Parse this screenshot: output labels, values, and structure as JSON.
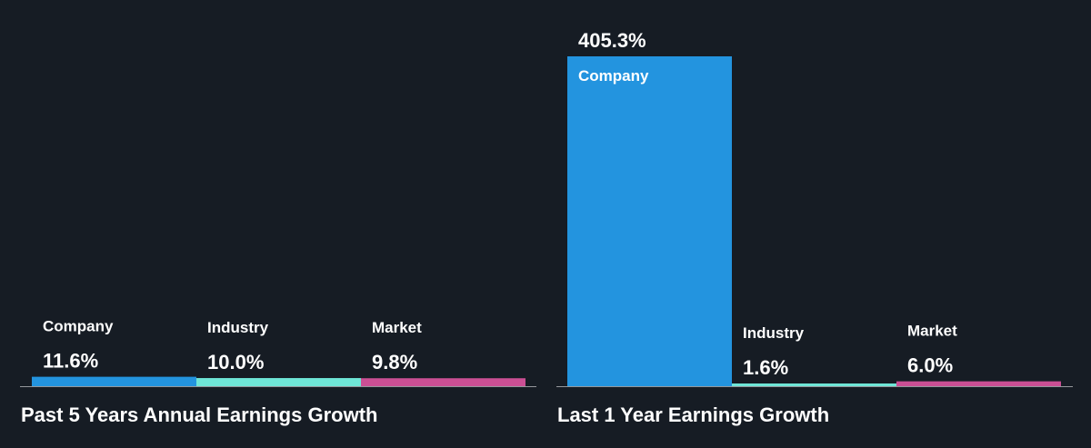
{
  "colors": {
    "background": "#161c24",
    "company": "#2394df",
    "industry": "#6fe6d7",
    "market": "#cb4f94",
    "baseline": "#ffffff",
    "text": "#ffffff"
  },
  "chart_data": [
    {
      "type": "bar",
      "title": "Past 5 Years Annual Earnings Growth",
      "categories": [
        "Company",
        "Industry",
        "Market"
      ],
      "values": [
        11.6,
        10.0,
        9.8
      ],
      "value_labels": [
        "11.6%",
        "10.0%",
        "9.8%"
      ],
      "unit": "%",
      "ylim": [
        0,
        405.3
      ],
      "grid": false,
      "legend": "none"
    },
    {
      "type": "bar",
      "title": "Last 1 Year Earnings Growth",
      "categories": [
        "Company",
        "Industry",
        "Market"
      ],
      "values": [
        405.3,
        1.6,
        6.0
      ],
      "value_labels": [
        "405.3%",
        "1.6%",
        "6.0%"
      ],
      "unit": "%",
      "ylim": [
        0,
        405.3
      ],
      "grid": false,
      "legend": "none"
    }
  ]
}
